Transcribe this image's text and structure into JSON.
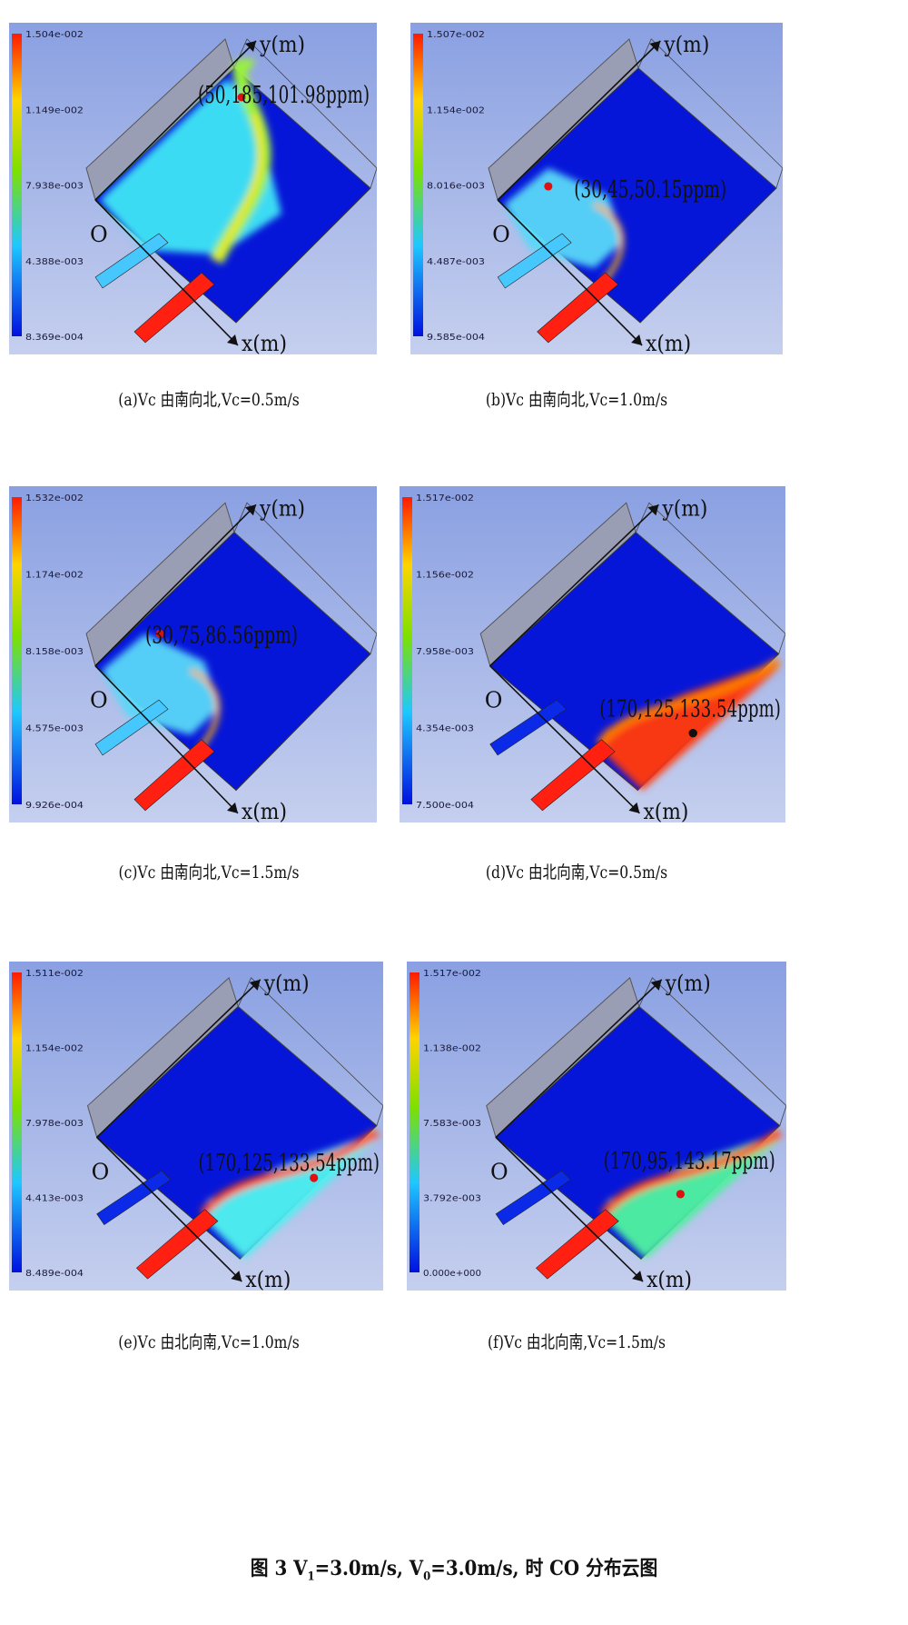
{
  "panels": [
    {
      "id": "a",
      "caption": "(a)Vc 由南向北,Vc=0.5m/s",
      "scale": [
        "1.504e-002",
        "1.149e-002",
        "7.938e-003",
        "4.388e-003",
        "8.369e-004"
      ],
      "annotation": "(50,185,101.98ppm)",
      "point_color": "#e01010",
      "mode": "sn",
      "y_label": "y(m)",
      "x_label": "x(m)",
      "origin": "O"
    },
    {
      "id": "b",
      "caption": "(b)Vc 由南向北,Vc=1.0m/s",
      "scale": [
        "1.507e-002",
        "1.154e-002",
        "8.016e-003",
        "4.487e-003",
        "9.585e-004"
      ],
      "annotation": "(30,45,50.15ppm)",
      "point_color": "#e01010",
      "mode": "sn",
      "y_label": "y(m)",
      "x_label": "x(m)",
      "origin": "O"
    },
    {
      "id": "c",
      "caption": "(c)Vc 由南向北,Vc=1.5m/s",
      "scale": [
        "1.532e-002",
        "1.174e-002",
        "8.158e-003",
        "4.575e-003",
        "9.926e-004"
      ],
      "annotation": "(30,75,86.56ppm)",
      "point_color": "#e01010",
      "mode": "sn",
      "y_label": "y(m)",
      "x_label": "x(m)",
      "origin": "O"
    },
    {
      "id": "d",
      "caption": "(d)Vc 由北向南,Vc=0.5m/s",
      "scale": [
        "1.517e-002",
        "1.156e-002",
        "7.958e-003",
        "4.354e-003",
        "7.500e-004"
      ],
      "annotation": "(170,125,133.54ppm)",
      "point_color": "#111111",
      "mode": "ns",
      "y_label": "y(m)",
      "x_label": "x(m)",
      "origin": "O"
    },
    {
      "id": "e",
      "caption": "(e)Vc 由北向南,Vc=1.0m/s",
      "scale": [
        "1.511e-002",
        "1.154e-002",
        "7.978e-003",
        "4.413e-003",
        "8.489e-004"
      ],
      "annotation": "(170,125,133.54ppm)",
      "point_color": "#e01010",
      "mode": "ns",
      "y_label": "y(m)",
      "x_label": "x(m)",
      "origin": "O"
    },
    {
      "id": "f",
      "caption": "(f)Vc 由北向南,Vc=1.5m/s",
      "scale": [
        "1.517e-002",
        "1.138e-002",
        "7.583e-003",
        "3.792e-003",
        "0.000e+000"
      ],
      "annotation": "(170,95,143.17ppm)",
      "point_color": "#e01010",
      "mode": "ns",
      "y_label": "y(m)",
      "x_label": "x(m)",
      "origin": "O"
    }
  ],
  "figure_title": {
    "prefix": "图 3  V",
    "sub1": "1",
    "mid": "=3.0m/s, V",
    "sub2": "0",
    "suffix": "=3.0m/s, 时 CO 分布云图"
  }
}
